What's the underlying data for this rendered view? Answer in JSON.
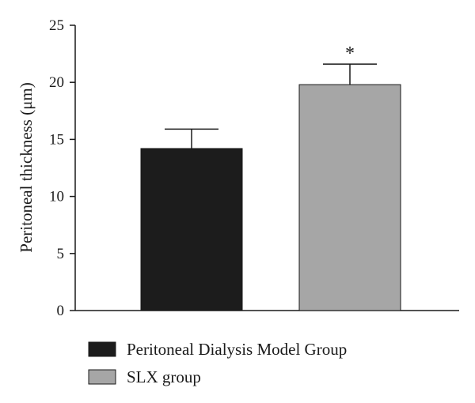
{
  "chart_data": {
    "type": "bar",
    "categories": [
      "Peritoneal Dialysis Model Group",
      "SLX group"
    ],
    "values": [
      14.2,
      19.8
    ],
    "errors": [
      1.7,
      1.8
    ],
    "colors": [
      "#1c1c1c",
      "#a6a6a6"
    ],
    "annotations": [
      "",
      "*"
    ],
    "ylabel": "Peritoneal thickness (μm)",
    "ylim": [
      0,
      25
    ],
    "yticks": [
      0,
      5,
      10,
      15,
      20,
      25
    ],
    "grid": false,
    "legend": "bottom"
  }
}
